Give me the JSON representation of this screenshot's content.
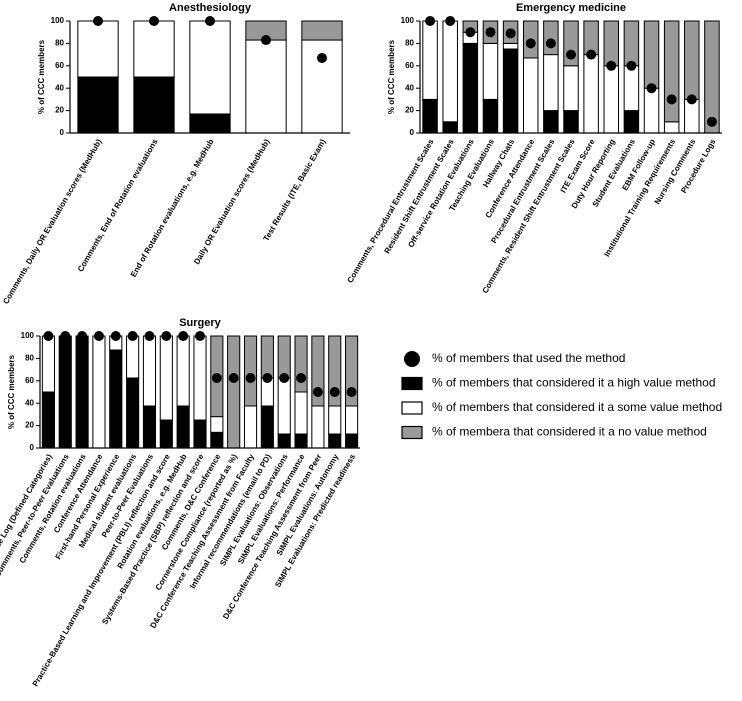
{
  "chart_data": [
    {
      "type": "bar",
      "title": "Anesthesiology",
      "y_label": "% of CCC members",
      "categories": [
        "Comments, Daily OR Evaluation scores (MedHub)",
        "Comments, End of Rotation evaluations",
        "End of Rotation evaluations, e.g. MedHub",
        "Daily OR Evaluation scores (MedHub)",
        "Test Results (ITE, Basic Exam)"
      ],
      "ylim": [
        0,
        100
      ],
      "yticks": [
        0,
        20,
        40,
        60,
        80,
        100
      ],
      "series": [
        {
          "type": "scatter",
          "color": "#000000",
          "values": [
            100,
            100,
            100,
            83,
            67
          ]
        },
        {
          "color": "#000000",
          "values": [
            50,
            50,
            17,
            0,
            0
          ]
        },
        {
          "color": "#ffffff",
          "values": [
            50,
            50,
            83,
            83,
            83
          ]
        },
        {
          "color": "#999999",
          "values": [
            0,
            0,
            0,
            17,
            17
          ]
        }
      ]
    },
    {
      "type": "bar",
      "title": "Emergency medicine",
      "y_label": "% of CCC members",
      "categories": [
        "Comments, Procedural Entrustment Scales",
        "Resident Shift Entrustment Scales",
        "Off-service Rotation Evaluations",
        "Teaching Evaluations",
        "Hallway Chats",
        "Conference Attendance",
        "Procedural Entrustment Scales",
        "Comments, Resident Shift Entrustment Scales",
        "ITE Exam Score",
        "Duty Hour Reporting",
        "Student Evaluations",
        "EBM Follow-up",
        "Institutional Training Requirements",
        "Nursing Comments",
        "Procedure Logs"
      ],
      "ylim": [
        0,
        100
      ],
      "yticks": [
        0,
        20,
        40,
        60,
        80,
        100
      ],
      "series": [
        {
          "type": "scatter",
          "color": "#000000",
          "values": [
            100,
            100,
            90,
            90,
            89,
            80,
            80,
            70,
            70,
            60,
            60,
            40,
            30,
            30,
            10
          ]
        },
        {
          "color": "#000000",
          "values": [
            30,
            10,
            80,
            30,
            75,
            0,
            20,
            20,
            0,
            0,
            20,
            0,
            0,
            0,
            0
          ]
        },
        {
          "color": "#ffffff",
          "values": [
            70,
            90,
            10,
            50,
            5,
            67,
            50,
            40,
            70,
            60,
            40,
            40,
            10,
            30,
            0
          ]
        },
        {
          "color": "#999999",
          "values": [
            0,
            0,
            10,
            20,
            20,
            33,
            30,
            40,
            30,
            40,
            40,
            60,
            90,
            70,
            100
          ]
        }
      ]
    },
    {
      "type": "bar",
      "title": "Surgery",
      "y_label": "% of CCC members",
      "categories": [
        "Case Log (Defined Categories)",
        "Comments, Peer-to-Peer Evaluations",
        "Comments, Rotation evaluations",
        "Conference Attendance",
        "First-hand Personal Experience",
        "Medical student evaluations",
        "Peer-to-Peer Evaluations",
        "Practice-Based Learning and Improvement (PBLI) reflection and score",
        "Rotation evaluations, e.g. MedHub",
        "Systems-Based Practice (SBP) reflection and score",
        "Comments, D&C Conference",
        "Cornerstone Compliance (reported as %)",
        "D&C Conference Teaching Assessment from Faculty",
        "Informal recommendations (email to PD)",
        "SIMPL Evaluations: Observations",
        "SIMPL Evaluations: Performance",
        "D&C Conference Teaching Assessment from Peer",
        "SIMPL Evaluations: Autonomy",
        "SIMPL Evaluations: Predicted readiness"
      ],
      "ylim": [
        0,
        100
      ],
      "yticks": [
        0,
        20,
        40,
        60,
        80,
        100
      ],
      "series": [
        {
          "type": "scatter",
          "name": "% of members that used the method",
          "color": "#000000",
          "values": [
            100,
            100,
            100,
            100,
            100,
            100,
            100,
            100,
            100,
            100,
            62.5,
            62.5,
            62.5,
            62.5,
            62.5,
            62.5,
            50,
            50,
            50
          ]
        },
        {
          "name": "% of members that considered it a high value method",
          "color": "#000000",
          "values": [
            50,
            100,
            100,
            0,
            87.5,
            62.5,
            37.5,
            25,
            37.5,
            25,
            14,
            0,
            0,
            37.5,
            12.5,
            12.5,
            0,
            12.5,
            12.5
          ]
        },
        {
          "name": "% of members that considered it a some value method",
          "color": "#ffffff",
          "values": [
            50,
            0,
            0,
            100,
            12.5,
            37.5,
            62.5,
            75,
            62.5,
            75,
            14,
            0,
            37.5,
            25,
            50,
            37.5,
            37.5,
            25,
            25
          ]
        },
        {
          "name": "% of membera that considered it a no value method",
          "color": "#999999",
          "values": [
            0,
            0,
            0,
            0,
            0,
            0,
            0,
            0,
            0,
            0,
            72,
            100,
            62.5,
            37.5,
            37.5,
            50,
            62.5,
            62.5,
            62.5
          ]
        }
      ]
    }
  ]
}
